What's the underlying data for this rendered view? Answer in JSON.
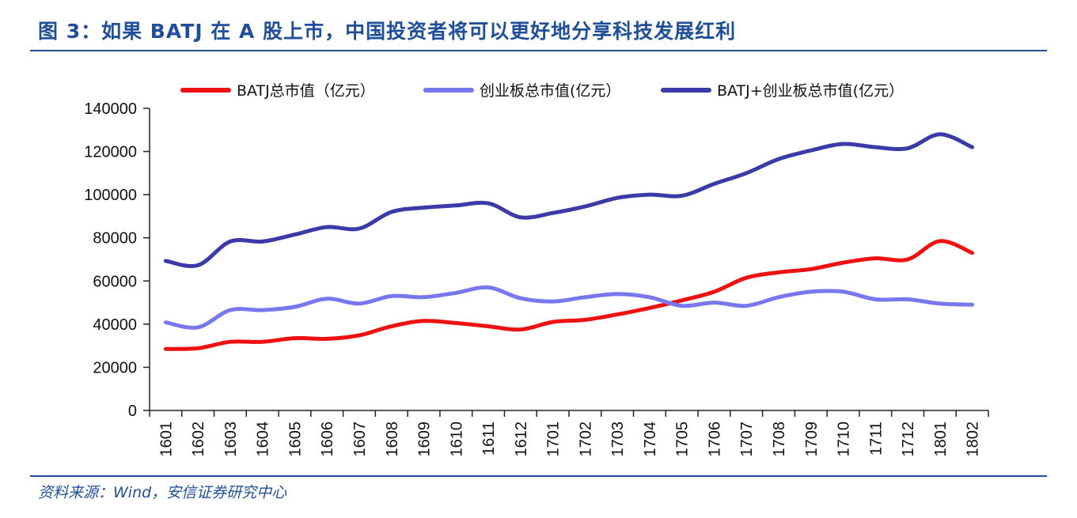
{
  "header": {
    "title": "图 3：如果 BATJ 在 A 股上市，中国投资者将可以更好地分享科技发展红利"
  },
  "footer": {
    "source": "资料来源：Wind，安信证券研究中心"
  },
  "chart_data": {
    "type": "line",
    "title": "",
    "xlabel": "",
    "ylabel": "",
    "ylim": [
      0,
      140000
    ],
    "yticks": [
      "0",
      "20000",
      "40000",
      "60000",
      "80000",
      "100000",
      "120000",
      "140000"
    ],
    "categories": [
      "1601",
      "1602",
      "1603",
      "1604",
      "1605",
      "1606",
      "1607",
      "1608",
      "1609",
      "1610",
      "1611",
      "1612",
      "1701",
      "1702",
      "1703",
      "1704",
      "1705",
      "1706",
      "1707",
      "1708",
      "1709",
      "1710",
      "1711",
      "1712",
      "1801",
      "1802"
    ],
    "legend_position": "top",
    "series": [
      {
        "name": "BATJ总市值（亿元）",
        "color": "#ee1111",
        "values": [
          28500,
          28800,
          31800,
          31800,
          33500,
          33200,
          34800,
          39000,
          41500,
          40500,
          39000,
          37500,
          41000,
          42000,
          44500,
          47500,
          51000,
          55000,
          61500,
          64000,
          65500,
          68500,
          70500,
          70000,
          78500,
          73000
        ]
      },
      {
        "name": "创业板总市值(亿元）",
        "color": "#7777ee",
        "values": [
          40800,
          38500,
          46500,
          46500,
          48000,
          51800,
          49500,
          53000,
          52500,
          54500,
          57000,
          52000,
          50500,
          52500,
          54000,
          52500,
          48500,
          50000,
          48500,
          52500,
          55000,
          55000,
          51500,
          51500,
          49500,
          49000
        ]
      },
      {
        "name": "BATJ+创业板总市值(亿元）",
        "color": "#3a3aa8",
        "values": [
          69300,
          67300,
          78300,
          78300,
          81500,
          85000,
          84300,
          92000,
          94000,
          95000,
          96000,
          89500,
          91500,
          94500,
          98500,
          100000,
          99500,
          105000,
          110000,
          116500,
          120500,
          123500,
          122000,
          121500,
          128000,
          122000
        ]
      }
    ]
  }
}
